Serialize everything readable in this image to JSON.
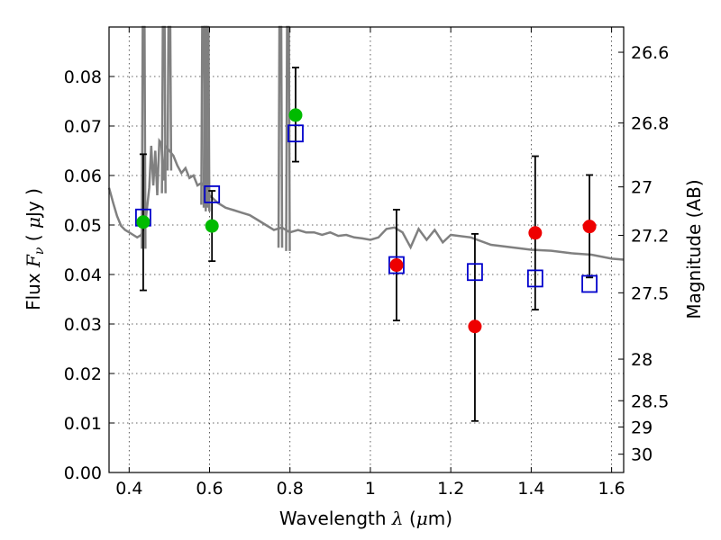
{
  "chart_data": {
    "type": "scatter",
    "title": "",
    "xlabel": "Wavelength  λ (μm)",
    "ylabel": "Flux  F_ν  ( μJy )",
    "ylabel2": "Magnitude (AB)",
    "xlim": [
      0.35,
      1.63
    ],
    "ylim": [
      0.0,
      0.09
    ],
    "grid": true,
    "x_ticks": [
      0.4,
      0.6,
      0.8,
      1.0,
      1.2,
      1.4,
      1.6
    ],
    "x_tick_labels": [
      "0.4",
      "0.6",
      "0.8",
      "1",
      "1.2",
      "1.4",
      "1.6"
    ],
    "y_ticks": [
      0.0,
      0.01,
      0.02,
      0.03,
      0.04,
      0.05,
      0.06,
      0.07,
      0.08
    ],
    "y_tick_labels": [
      "0.00",
      "0.01",
      "0.02",
      "0.03",
      "0.04",
      "0.05",
      "0.06",
      "0.07",
      "0.08"
    ],
    "right_axis_ticks": [
      {
        "flux": 0.0849,
        "label": "26.6"
      },
      {
        "flux": 0.0706,
        "label": "26.8"
      },
      {
        "flux": 0.0577,
        "label": "27"
      },
      {
        "flux": 0.0479,
        "label": "27.2"
      },
      {
        "flux": 0.0363,
        "label": "27.5"
      },
      {
        "flux": 0.0229,
        "label": "28"
      },
      {
        "flux": 0.0145,
        "label": "28.5"
      },
      {
        "flux": 0.0092,
        "label": "29"
      },
      {
        "flux": 0.0037,
        "label": "30"
      }
    ],
    "observed_green": {
      "color": "#00bb00",
      "points": [
        {
          "x": 0.435,
          "y": 0.0506,
          "err_lo": 0.0368,
          "err_hi": 0.0643
        },
        {
          "x": 0.606,
          "y": 0.0498,
          "err_lo": 0.0427,
          "err_hi": 0.0569
        },
        {
          "x": 0.814,
          "y": 0.0722,
          "err_lo": 0.0628,
          "err_hi": 0.0818
        }
      ]
    },
    "observed_red": {
      "color": "#ee0000",
      "points": [
        {
          "x": 1.065,
          "y": 0.0419,
          "err_lo": 0.0307,
          "err_hi": 0.0531
        },
        {
          "x": 1.26,
          "y": 0.0295,
          "err_lo": 0.0104,
          "err_hi": 0.0482
        },
        {
          "x": 1.41,
          "y": 0.0484,
          "err_lo": 0.0329,
          "err_hi": 0.0639
        },
        {
          "x": 1.545,
          "y": 0.0497,
          "err_lo": 0.0394,
          "err_hi": 0.0601
        }
      ]
    },
    "model_squares": {
      "color": "#0000cc",
      "points": [
        {
          "x": 0.435,
          "y": 0.0515
        },
        {
          "x": 0.606,
          "y": 0.0562
        },
        {
          "x": 0.814,
          "y": 0.0685
        },
        {
          "x": 1.065,
          "y": 0.0419
        },
        {
          "x": 1.26,
          "y": 0.0405
        },
        {
          "x": 1.41,
          "y": 0.0392
        },
        {
          "x": 1.545,
          "y": 0.0381
        }
      ]
    },
    "model_spectrum": {
      "color": "#808080",
      "x": [
        0.35,
        0.36,
        0.37,
        0.38,
        0.39,
        0.4,
        0.41,
        0.42,
        0.43,
        0.44,
        0.45,
        0.455,
        0.46,
        0.465,
        0.47,
        0.475,
        0.48,
        0.485,
        0.49,
        0.5,
        0.51,
        0.52,
        0.53,
        0.54,
        0.55,
        0.56,
        0.57,
        0.58,
        0.59,
        0.6,
        0.62,
        0.64,
        0.66,
        0.68,
        0.7,
        0.72,
        0.74,
        0.76,
        0.78,
        0.8,
        0.82,
        0.84,
        0.86,
        0.88,
        0.9,
        0.92,
        0.94,
        0.96,
        0.98,
        1.0,
        1.02,
        1.04,
        1.06,
        1.08,
        1.1,
        1.12,
        1.14,
        1.16,
        1.18,
        1.2,
        1.25,
        1.3,
        1.35,
        1.4,
        1.45,
        1.5,
        1.55,
        1.6,
        1.63
      ],
      "y": [
        0.0575,
        0.0545,
        0.0518,
        0.0498,
        0.049,
        0.0485,
        0.048,
        0.0475,
        0.048,
        0.05,
        0.0575,
        0.066,
        0.058,
        0.065,
        0.056,
        0.067,
        0.0665,
        0.059,
        0.066,
        0.065,
        0.064,
        0.062,
        0.0605,
        0.0615,
        0.0595,
        0.06,
        0.058,
        0.0585,
        0.0575,
        0.056,
        0.0545,
        0.0535,
        0.053,
        0.0525,
        0.052,
        0.051,
        0.05,
        0.049,
        0.0495,
        0.0485,
        0.049,
        0.0485,
        0.0485,
        0.048,
        0.0485,
        0.0478,
        0.048,
        0.0475,
        0.0473,
        0.047,
        0.0475,
        0.0492,
        0.0495,
        0.0485,
        0.0455,
        0.0492,
        0.047,
        0.049,
        0.0465,
        0.048,
        0.0475,
        0.046,
        0.0455,
        0.045,
        0.0448,
        0.0443,
        0.044,
        0.0432,
        0.043
      ],
      "emission_lines": [
        {
          "x": 0.436,
          "top": 0.09
        },
        {
          "x": 0.486,
          "top": 0.09
        },
        {
          "x": 0.5,
          "top": 0.09
        },
        {
          "x": 0.584,
          "top": 0.09
        },
        {
          "x": 0.59,
          "top": 0.09
        },
        {
          "x": 0.595,
          "top": 0.09
        },
        {
          "x": 0.776,
          "top": 0.09
        },
        {
          "x": 0.795,
          "top": 0.09
        }
      ]
    }
  }
}
